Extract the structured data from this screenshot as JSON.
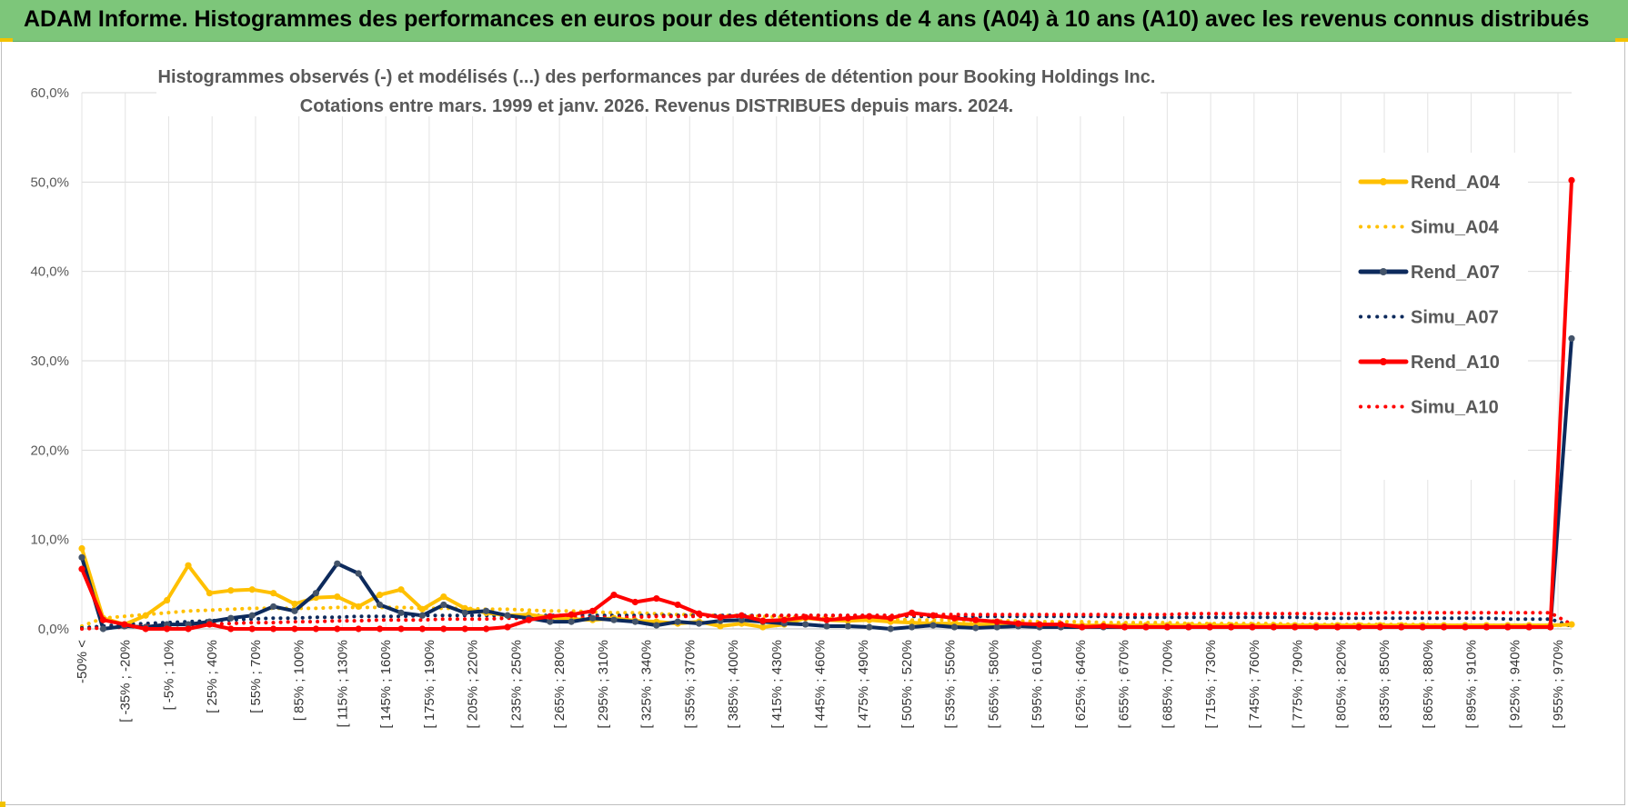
{
  "banner": {
    "title": "ADAM Informe. Histogrammes des performances en euros pour des détentions de 4 ans (A04) à 10 ans (A10) avec les revenus connus distribués"
  },
  "chart_data": {
    "type": "line",
    "title": "Histogrammes observés (-) et modélisés (...) des performances par durées de détention pour Booking Holdings Inc.",
    "subtitle": "Cotations entre mars. 1999 et janv. 2026.  Revenus DISTRIBUES depuis mars. 2024.",
    "ylim": [
      0,
      60
    ],
    "yticks": [
      "0,0%",
      "10,0%",
      "20,0%",
      "30,0%",
      "40,0%",
      "50,0%",
      "60,0%"
    ],
    "grid": true,
    "legend_position": "right",
    "category_labels": [
      "-50% <",
      "[ -35% ; -20%",
      "[ -5% ; 10%",
      "[ 25% ; 40%",
      "[ 55% ; 70%",
      "[ 85% ; 100%",
      "[ 115% ; 130%",
      "[ 145% ; 160%",
      "[ 175% ; 190%",
      "[ 205% ; 220%",
      "[ 235% ; 250%",
      "[ 265% ; 280%",
      "[ 295% ; 310%",
      "[ 325% ; 340%",
      "[ 355% ; 370%",
      "[ 385% ; 400%",
      "[ 415% ; 430%",
      "[ 445% ; 460%",
      "[ 475% ; 490%",
      "[ 505% ; 520%",
      "[ 535% ; 550%",
      "[ 565% ; 580%",
      "[ 595% ; 610%",
      "[ 625% ; 640%",
      "[ 655% ; 670%",
      "[ 685% ; 700%",
      "[ 715% ; 730%",
      "[ 745% ; 760%",
      "[ 775% ; 790%",
      "[ 805% ; 820%",
      "[ 835% ; 850%",
      "[ 865% ; 880%",
      "[ 895% ; 910%",
      "[ 925% ; 940%",
      "[ 955% ; 970%"
    ],
    "series": [
      {
        "name": "Rend_A04",
        "color": "#ffc000",
        "style": "solid",
        "values": [
          9.0,
          1.2,
          0.5,
          1.5,
          3.2,
          7.1,
          4.0,
          4.3,
          4.4,
          4.0,
          2.8,
          3.5,
          3.6,
          2.5,
          3.8,
          4.4,
          2.2,
          3.6,
          2.3,
          1.8,
          1.5,
          1.6,
          1.3,
          1.1,
          1.0,
          1.2,
          0.9,
          0.8,
          0.6,
          0.8,
          0.3,
          0.6,
          0.2,
          0.5,
          1.2,
          1.0,
          0.9,
          1.0,
          0.8,
          0.7,
          0.6,
          0.6,
          0.5,
          0.5,
          0.5,
          0.4,
          0.4,
          0.4,
          0.4,
          0.4,
          0.4,
          0.4,
          0.4,
          0.4,
          0.4,
          0.4,
          0.4,
          0.4,
          0.4,
          0.4,
          0.4,
          0.4,
          0.4,
          0.4,
          0.4,
          0.4,
          0.4,
          0.4,
          0.4,
          0.4,
          0.5
        ]
      },
      {
        "name": "Simu_A04",
        "color": "#ffc000",
        "style": "dotted",
        "values": [
          0.3,
          1.2,
          1.4,
          1.6,
          1.8,
          2.0,
          2.1,
          2.2,
          2.3,
          2.3,
          2.3,
          2.3,
          2.4,
          2.4,
          2.4,
          2.4,
          2.3,
          2.3,
          2.3,
          2.2,
          2.2,
          2.1,
          2.0,
          2.0,
          1.9,
          1.8,
          1.8,
          1.7,
          1.6,
          1.6,
          1.5,
          1.5,
          1.4,
          1.3,
          1.3,
          1.2,
          1.2,
          1.1,
          1.1,
          1.0,
          1.0,
          1.0,
          0.9,
          0.9,
          0.9,
          0.8,
          0.8,
          0.8,
          0.7,
          0.7,
          0.7,
          0.7,
          0.6,
          0.6,
          0.6,
          0.6,
          0.6,
          0.5,
          0.5,
          0.5,
          0.5,
          0.5,
          0.5,
          0.5,
          0.4,
          0.4,
          0.4,
          0.4,
          0.4,
          0.4,
          0.4
        ]
      },
      {
        "name": "Rend_A07",
        "color": "#0d2a5c",
        "style": "solid",
        "values": [
          8.0,
          0.0,
          0.3,
          0.2,
          0.5,
          0.5,
          0.8,
          1.2,
          1.5,
          2.5,
          2.0,
          4.0,
          7.3,
          6.2,
          2.7,
          1.8,
          1.5,
          2.7,
          1.8,
          2.0,
          1.5,
          1.2,
          0.8,
          0.8,
          1.2,
          1.0,
          0.8,
          0.4,
          0.8,
          0.6,
          0.9,
          1.0,
          0.8,
          0.6,
          0.5,
          0.3,
          0.3,
          0.2,
          0.0,
          0.2,
          0.4,
          0.2,
          0.1,
          0.2,
          0.3,
          0.2,
          0.2,
          0.2,
          0.2,
          0.2,
          0.2,
          0.2,
          0.2,
          0.2,
          0.2,
          0.2,
          0.2,
          0.2,
          0.2,
          0.2,
          0.2,
          0.2,
          0.2,
          0.2,
          0.2,
          0.2,
          0.2,
          0.2,
          0.2,
          0.2,
          32.5
        ]
      },
      {
        "name": "Simu_A07",
        "color": "#0d2a5c",
        "style": "dotted",
        "values": [
          0.1,
          0.3,
          0.5,
          0.6,
          0.7,
          0.8,
          0.9,
          1.0,
          1.1,
          1.2,
          1.2,
          1.3,
          1.3,
          1.4,
          1.4,
          1.4,
          1.5,
          1.5,
          1.5,
          1.5,
          1.5,
          1.5,
          1.5,
          1.5,
          1.5,
          1.5,
          1.5,
          1.5,
          1.5,
          1.5,
          1.5,
          1.5,
          1.5,
          1.5,
          1.5,
          1.5,
          1.5,
          1.5,
          1.5,
          1.4,
          1.4,
          1.4,
          1.4,
          1.4,
          1.4,
          1.4,
          1.4,
          1.4,
          1.4,
          1.3,
          1.3,
          1.3,
          1.3,
          1.3,
          1.3,
          1.3,
          1.3,
          1.3,
          1.2,
          1.2,
          1.2,
          1.2,
          1.2,
          1.2,
          1.2,
          1.2,
          1.2,
          1.1,
          1.1,
          1.1,
          0.3
        ]
      },
      {
        "name": "Rend_A10",
        "color": "#ff0000",
        "style": "solid",
        "values": [
          6.7,
          1.0,
          0.5,
          0.0,
          0.0,
          0.0,
          0.5,
          0.0,
          0.0,
          0.0,
          0.0,
          0.0,
          0.0,
          0.0,
          0.0,
          0.0,
          0.0,
          0.0,
          0.0,
          0.0,
          0.2,
          1.0,
          1.4,
          1.6,
          2.0,
          3.8,
          3.0,
          3.4,
          2.7,
          1.7,
          1.3,
          1.5,
          0.9,
          1.0,
          1.3,
          1.0,
          1.2,
          1.4,
          1.2,
          1.8,
          1.5,
          1.2,
          1.0,
          0.8,
          0.6,
          0.5,
          0.5,
          0.2,
          0.3,
          0.2,
          0.2,
          0.2,
          0.2,
          0.2,
          0.2,
          0.2,
          0.2,
          0.2,
          0.2,
          0.2,
          0.2,
          0.2,
          0.2,
          0.2,
          0.2,
          0.2,
          0.2,
          0.2,
          0.2,
          0.2,
          50.2
        ]
      },
      {
        "name": "Simu_A10",
        "color": "#ff0000",
        "style": "dotted",
        "values": [
          0.0,
          0.1,
          0.2,
          0.3,
          0.4,
          0.5,
          0.5,
          0.6,
          0.7,
          0.7,
          0.8,
          0.8,
          0.9,
          0.9,
          1.0,
          1.0,
          1.0,
          1.1,
          1.1,
          1.1,
          1.2,
          1.2,
          1.2,
          1.3,
          1.3,
          1.3,
          1.3,
          1.4,
          1.4,
          1.4,
          1.4,
          1.4,
          1.5,
          1.5,
          1.5,
          1.5,
          1.5,
          1.5,
          1.5,
          1.5,
          1.6,
          1.6,
          1.6,
          1.6,
          1.6,
          1.6,
          1.6,
          1.6,
          1.6,
          1.6,
          1.6,
          1.6,
          1.7,
          1.7,
          1.7,
          1.7,
          1.7,
          1.7,
          1.7,
          1.7,
          1.7,
          1.8,
          1.8,
          1.8,
          1.8,
          1.8,
          1.8,
          1.8,
          1.8,
          1.8,
          0.5
        ]
      }
    ]
  }
}
